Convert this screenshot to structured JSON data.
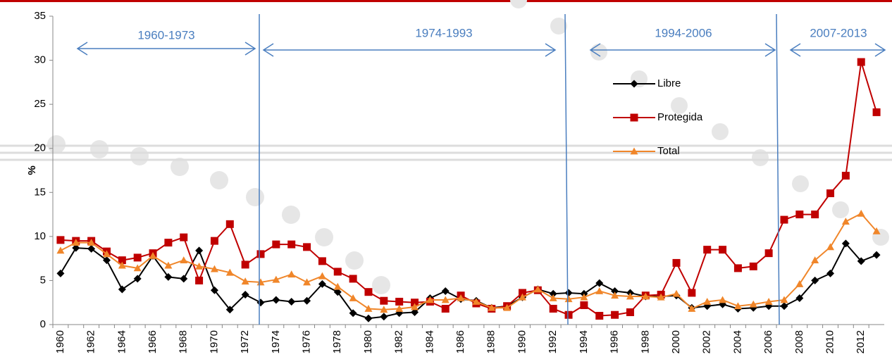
{
  "chart_data": {
    "type": "line",
    "ylabel": "%",
    "categories": [
      "1960",
      null,
      "1962",
      null,
      "1964",
      null,
      "1966",
      null,
      "1968",
      null,
      "1970",
      null,
      "1972",
      null,
      "1974",
      null,
      "1976",
      null,
      "1978",
      null,
      "1980",
      null,
      "1982",
      null,
      "1984",
      null,
      "1986",
      null,
      "1988",
      null,
      "1990",
      null,
      "1992",
      null,
      "1994",
      null,
      "1996",
      null,
      "1998",
      null,
      "2000",
      null,
      "2002",
      null,
      "2004",
      null,
      "2006",
      null,
      "2008",
      null,
      "2010",
      null,
      "2012",
      null
    ],
    "series": [
      {
        "name": "Libre",
        "color": "#000000",
        "marker": "diamond",
        "values": [
          5.8,
          8.7,
          8.6,
          7.3,
          4.0,
          5.2,
          7.8,
          5.4,
          5.2,
          8.4,
          3.9,
          1.7,
          3.4,
          2.5,
          2.8,
          2.6,
          2.7,
          4.6,
          3.7,
          1.3,
          0.7,
          0.9,
          1.3,
          1.4,
          3.0,
          3.8,
          2.9,
          2.7,
          1.9,
          2.1,
          3.1,
          4.0,
          3.5,
          3.6,
          3.5,
          4.7,
          3.8,
          3.6,
          3.2,
          3.2,
          3.3,
          1.9,
          2.1,
          2.3,
          1.8,
          1.9,
          2.1,
          2.1,
          3.0,
          5.0,
          5.8,
          9.2,
          7.2,
          7.9
        ]
      },
      {
        "name": "Protegida",
        "color": "#c00000",
        "marker": "square",
        "values": [
          9.6,
          9.5,
          9.5,
          8.3,
          7.3,
          7.6,
          8.1,
          9.3,
          9.9,
          5.0,
          9.5,
          11.4,
          6.8,
          8.0,
          9.1,
          9.1,
          8.8,
          7.2,
          6.0,
          5.2,
          3.7,
          2.7,
          2.6,
          2.5,
          2.6,
          1.8,
          3.3,
          2.4,
          1.8,
          2.1,
          3.6,
          3.9,
          1.8,
          1.1,
          2.2,
          1.0,
          1.1,
          1.4,
          3.3,
          3.4,
          7.0,
          3.6,
          8.5,
          8.5,
          6.4,
          6.6,
          8.1,
          11.9,
          12.5,
          12.5,
          14.9,
          16.9,
          29.8,
          24.1
        ]
      },
      {
        "name": "Total",
        "color": "#f0862a",
        "marker": "triangle",
        "values": [
          8.4,
          9.3,
          9.3,
          8.0,
          6.7,
          6.4,
          7.8,
          6.7,
          7.3,
          6.6,
          6.3,
          5.9,
          4.9,
          4.8,
          5.1,
          5.7,
          4.8,
          5.5,
          4.3,
          3.0,
          1.8,
          1.7,
          1.8,
          2.0,
          2.8,
          2.8,
          3.0,
          2.6,
          1.9,
          1.9,
          3.1,
          4.0,
          3.0,
          2.9,
          3.1,
          3.8,
          3.3,
          3.2,
          3.2,
          3.1,
          3.5,
          1.8,
          2.6,
          2.8,
          2.1,
          2.3,
          2.6,
          2.8,
          4.6,
          7.3,
          8.8,
          11.7,
          12.6,
          10.6
        ]
      }
    ],
    "annotations": [
      "1960-1973",
      "1974-1993",
      "1994-2006",
      "2007-2013"
    ],
    "ylim": [
      0,
      35
    ],
    "yticks": [
      0,
      5,
      10,
      15,
      20,
      25,
      30,
      35
    ],
    "grid": false
  }
}
